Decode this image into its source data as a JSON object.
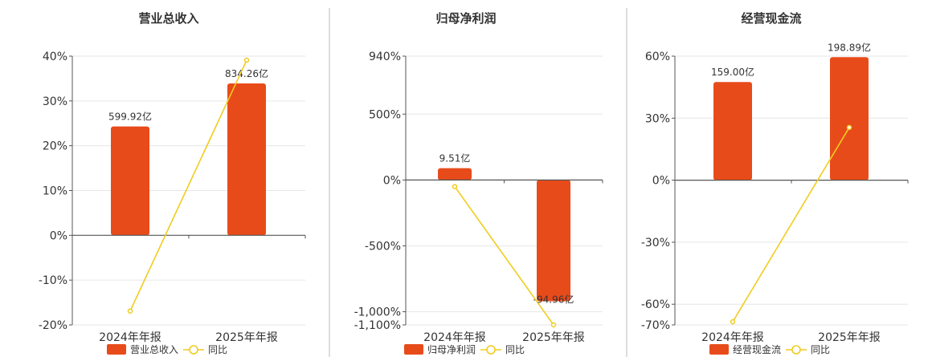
{
  "colors": {
    "bar": "#e84b1a",
    "line": "#f0cc1f",
    "grid": "#e6e6e6",
    "axis": "#555555",
    "divider": "#bbbbbb"
  },
  "chart_data": [
    {
      "type": "bar",
      "title": "营业总收入",
      "categories": [
        "2024年年报",
        "2025年年报"
      ],
      "axis": {
        "ylim": [
          -20,
          40
        ],
        "ticks": [
          -20,
          -10,
          0,
          10,
          20,
          30,
          40
        ],
        "tick_labels": [
          "-20%",
          "-10%",
          "0%",
          "10%",
          "20%",
          "30%",
          "40%"
        ]
      },
      "series": [
        {
          "name": "营业总收入",
          "kind": "bar",
          "values": [
            24.3,
            33.9
          ],
          "labels": [
            "599.92亿",
            "834.26亿"
          ]
        },
        {
          "name": "同比",
          "kind": "line",
          "values": [
            -16.9,
            39.1
          ]
        }
      ],
      "grid": true,
      "legend": "bottom-center"
    },
    {
      "type": "bar",
      "title": "归母净利润",
      "categories": [
        "2024年年报",
        "2025年年报"
      ],
      "axis": {
        "ylim": [
          -1100,
          940
        ],
        "ticks": [
          -1100,
          -1000,
          -500,
          0,
          500,
          940
        ],
        "tick_labels": [
          "-1,100%",
          "-1,000%",
          "-500%",
          "0%",
          "500%",
          "940%"
        ]
      },
      "series": [
        {
          "name": "归母净利润",
          "kind": "bar",
          "values": [
            90,
            -920
          ],
          "labels": [
            "9.51亿",
            "-94.96亿"
          ]
        },
        {
          "name": "同比",
          "kind": "line",
          "values": [
            -50,
            -1100
          ]
        }
      ],
      "grid": true,
      "legend": "bottom-center"
    },
    {
      "type": "bar",
      "title": "经营现金流",
      "categories": [
        "2024年年报",
        "2025年年报"
      ],
      "axis": {
        "ylim": [
          -70,
          60
        ],
        "ticks": [
          -70,
          -60,
          -30,
          0,
          30,
          60
        ],
        "tick_labels": [
          "-70%",
          "-60%",
          "-30%",
          "0%",
          "30%",
          "60%"
        ]
      },
      "series": [
        {
          "name": "经营现金流",
          "kind": "bar",
          "values": [
            47.5,
            59.5
          ],
          "labels": [
            "159.00亿",
            "198.89亿"
          ]
        },
        {
          "name": "同比",
          "kind": "line",
          "values": [
            -68.5,
            25.5
          ]
        }
      ],
      "grid": true,
      "legend": "bottom-center"
    }
  ]
}
